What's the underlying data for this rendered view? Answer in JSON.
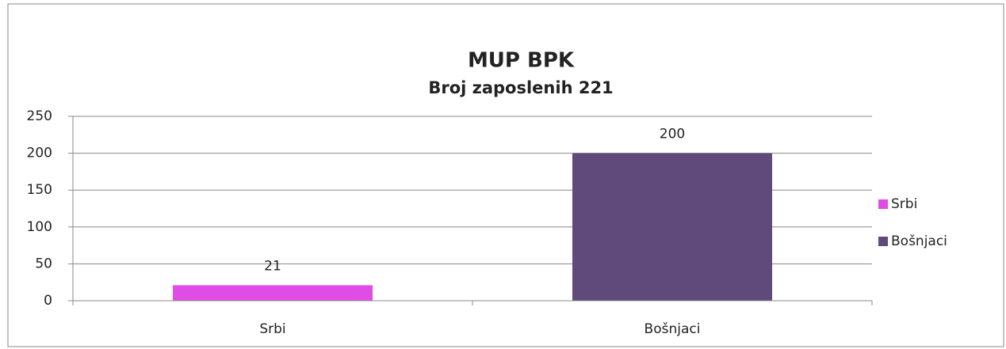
{
  "chart_data": {
    "type": "bar",
    "title": "MUP BPK",
    "subtitle": "Broj zaposlenih 221",
    "categories": [
      "Srbi",
      "Bošnjaci"
    ],
    "series": [
      {
        "name": "Srbi",
        "color": "#e04ce6",
        "values": [
          21,
          null
        ]
      },
      {
        "name": "Bošnjaci",
        "color": "#604a7b",
        "values": [
          null,
          200
        ]
      }
    ],
    "ylim": [
      0,
      250
    ],
    "yticks": [
      0,
      50,
      100,
      150,
      200,
      250
    ],
    "grid": true,
    "legend": "right"
  }
}
